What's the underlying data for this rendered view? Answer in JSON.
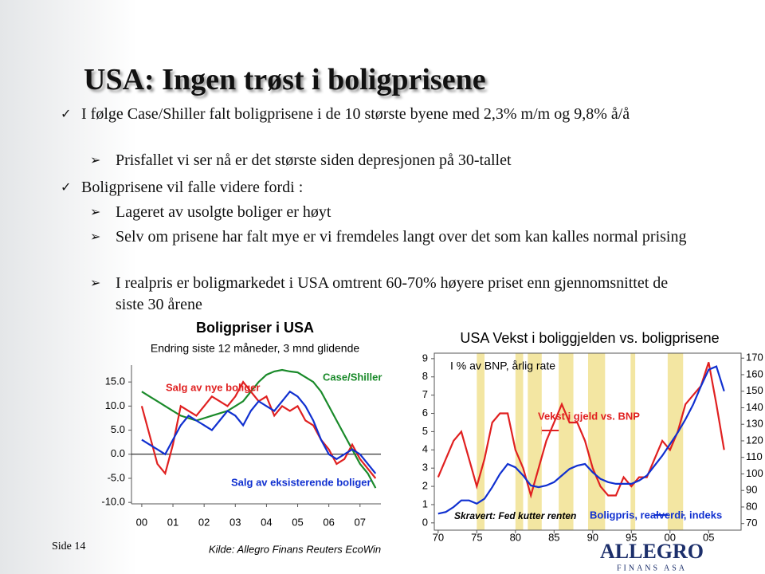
{
  "slide": {
    "title": "USA: Ingen trøst i boligprisene",
    "bullets": [
      {
        "text": "I følge Case/Shiller falt boligprisene i de 10 største byene med 2,3% m/m og 9,8% å/å",
        "sub": [
          "Prisfallet vi ser nå er det største siden depresjonen på 30-tallet"
        ]
      },
      {
        "text": "Boligprisene vil falle videre fordi :",
        "sub": [
          "Lageret av usolgte boliger er høyt",
          "Selv om prisene har falt mye er vi fremdeles langt over det som kan kalles normal prising",
          "I realpris er boligmarkedet i USA omtrent 60-70% høyere priset enn gjennomsnittet de siste 30 årene"
        ]
      }
    ],
    "footer": "Side 14",
    "logo": "ALLEGRO",
    "logo_sub": "FINANS ASA"
  },
  "chart_data": [
    {
      "type": "line",
      "title": "Boligpriser i USA",
      "subtitle": "Endring siste 12 måneder, 3 mnd glidende",
      "source": "Kilde: Allegro Finans Reuters EcoWin",
      "x": [
        2000,
        2000.25,
        2000.5,
        2000.75,
        2001,
        2001.25,
        2001.5,
        2001.75,
        2002,
        2002.25,
        2002.5,
        2002.75,
        2003,
        2003.25,
        2003.5,
        2003.75,
        2004,
        2004.25,
        2004.5,
        2004.75,
        2005,
        2005.25,
        2005.5,
        2005.75,
        2006,
        2006.25,
        2006.5,
        2006.75,
        2007,
        2007.25,
        2007.5
      ],
      "series": [
        {
          "name": "Case/Shiller",
          "color": "#1a8a2a",
          "values": [
            13,
            12,
            11,
            10,
            9,
            8,
            7.5,
            7,
            7.5,
            8,
            8.5,
            9,
            10,
            11,
            13,
            15,
            16.5,
            17.2,
            17.5,
            17.2,
            17,
            16,
            15,
            13,
            10,
            7,
            4,
            1,
            -2,
            -4,
            -7
          ]
        },
        {
          "name": "Salg av nye boliger",
          "color": "#e02020",
          "values": [
            10,
            4,
            -2,
            -4,
            2,
            10,
            9,
            8,
            10,
            12,
            11,
            10,
            12,
            15,
            13,
            11,
            12,
            8,
            10,
            9,
            10,
            7,
            6,
            3,
            1,
            -2,
            -1,
            2,
            -1,
            -3,
            -5
          ]
        },
        {
          "name": "Salg av eksisterende boliger",
          "color": "#1030d0",
          "values": [
            3,
            2,
            1,
            0,
            3,
            6,
            8,
            7,
            6,
            5,
            7,
            9,
            8,
            6,
            9,
            11,
            10,
            9,
            11,
            13,
            12,
            10,
            7,
            3,
            0,
            -1,
            0,
            1,
            0,
            -2,
            -4
          ]
        }
      ],
      "xlim": [
        1999.67,
        2007.67
      ],
      "xticks": [
        {
          "value": 2000,
          "label": "00"
        },
        {
          "value": 2001,
          "label": "01"
        },
        {
          "value": 2002,
          "label": "02"
        },
        {
          "value": 2003,
          "label": "03"
        },
        {
          "value": 2004,
          "label": "04"
        },
        {
          "value": 2005,
          "label": "05"
        },
        {
          "value": 2006,
          "label": "06"
        },
        {
          "value": 2007,
          "label": "07"
        }
      ],
      "ylim": [
        -10.3,
        18.5
      ],
      "yticks": [
        {
          "value": 15,
          "label": "15.0"
        },
        {
          "value": 10,
          "label": "10.0"
        },
        {
          "value": 5,
          "label": "5.0"
        },
        {
          "value": 0,
          "label": "0.0"
        },
        {
          "value": -5,
          "label": "-5.0"
        },
        {
          "value": -10,
          "label": "-10.0"
        }
      ],
      "zero_line": true
    },
    {
      "type": "line",
      "title": "USA Vekst i boliggjelden vs. boligprisene",
      "subtitle": "I % av BNP, årlig rate",
      "x": [
        1970,
        1971,
        1972,
        1973,
        1974,
        1975,
        1976,
        1977,
        1978,
        1979,
        1980,
        1981,
        1982,
        1983,
        1984,
        1985,
        1986,
        1987,
        1988,
        1989,
        1990,
        1991,
        1992,
        1993,
        1994,
        1995,
        1996,
        1997,
        1998,
        1999,
        2000,
        2001,
        2002,
        2003,
        2004,
        2005,
        2006,
        2007
      ],
      "series": [
        {
          "name": "Vekst i gjeld vs. BNP",
          "color": "#e02020",
          "values": [
            2.5,
            3.5,
            4.5,
            5,
            3.5,
            2,
            3.5,
            5.5,
            6,
            6,
            4,
            3,
            1.5,
            3,
            4.5,
            5.5,
            6.5,
            5.5,
            5.5,
            4.5,
            3,
            2,
            1.5,
            1.5,
            2.5,
            2,
            2.5,
            2.5,
            3.5,
            4.5,
            4,
            5,
            6.5,
            7,
            7.5,
            8.8,
            6.5,
            4
          ]
        },
        {
          "name": "Boligpris, realverdi, indeks",
          "color": "#1030d0",
          "axis": "y2",
          "values": [
            76,
            77,
            80,
            84,
            84,
            82,
            85,
            92,
            100,
            106,
            104,
            99,
            93,
            92,
            93,
            95,
            99,
            103,
            105,
            106,
            101,
            97,
            95,
            94,
            94,
            94,
            96,
            99,
            105,
            111,
            118,
            125,
            133,
            142,
            153,
            163,
            165,
            150
          ]
        }
      ],
      "shading": [
        [
          1975,
          1976
        ],
        [
          1980,
          1981
        ],
        [
          1981.6,
          1983.4
        ],
        [
          1985.6,
          1987.5
        ],
        [
          1989.4,
          1991.6
        ],
        [
          1994.9,
          1995.5
        ],
        [
          1999.7,
          2001.7
        ]
      ],
      "shading_label": "Skravert: Fed kutter renten",
      "shading_color": "#f3e6a2",
      "xlim": [
        1969.5,
        2009.2
      ],
      "xticks": [
        {
          "value": 1970,
          "label": "70"
        },
        {
          "value": 1975,
          "label": "75"
        },
        {
          "value": 1980,
          "label": "80"
        },
        {
          "value": 1985,
          "label": "85"
        },
        {
          "value": 1990,
          "label": "90"
        },
        {
          "value": 1995,
          "label": "95"
        },
        {
          "value": 2000,
          "label": "00"
        },
        {
          "value": 2005,
          "label": "05"
        }
      ],
      "ylim": [
        -0.4,
        9.3
      ],
      "yticks": [
        0,
        1,
        2,
        3,
        4,
        5,
        6,
        7,
        8,
        9
      ],
      "y2lim": [
        66,
        173
      ],
      "y2ticks": [
        70,
        80,
        90,
        100,
        110,
        120,
        130,
        140,
        150,
        160,
        170
      ]
    }
  ]
}
